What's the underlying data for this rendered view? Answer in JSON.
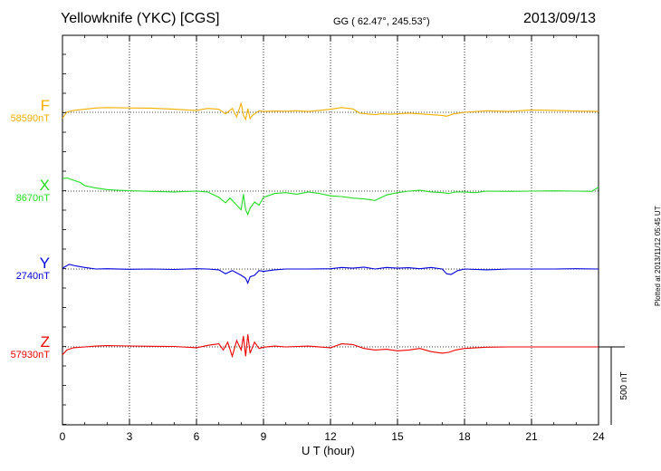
{
  "header": {
    "station": "Yellowknife (YKC)  [CGS]",
    "coords": "GG ( 62.47°, 245.53°)",
    "date": "2013/09/13"
  },
  "footer": {
    "xlabel": "U T (hour)",
    "plotted": "Plotted at 2013/11/12 05:45 UT"
  },
  "scale_bar": {
    "label": "500 nT"
  },
  "colors": {
    "F": "#f5b000",
    "X": "#22dd22",
    "Y": "#0000dd",
    "Z": "#ee0000"
  },
  "chart_data": {
    "type": "line",
    "title": "Yellowknife (YKC)  [CGS]",
    "xlabel": "U T (hour)",
    "ylabel": "",
    "xlim": [
      0,
      24
    ],
    "x_ticks": [
      0,
      3,
      6,
      9,
      12,
      15,
      18,
      21,
      24
    ],
    "x_tick_labels": [
      "0",
      "3",
      "6",
      "9",
      "12",
      "15",
      "18",
      "21",
      "24"
    ],
    "grid": true,
    "scale_nT": 500,
    "series": [
      {
        "name": "F",
        "baseline_label": "58590nT",
        "x": [
          0,
          0.2,
          0.5,
          1,
          1.5,
          2,
          3,
          4,
          5,
          6,
          6.5,
          7,
          7.3,
          7.6,
          7.8,
          8,
          8.1,
          8.2,
          8.3,
          8.4,
          8.5,
          8.8,
          9,
          9.5,
          10,
          10.5,
          11,
          11.5,
          12,
          12.5,
          13,
          13.3,
          13.6,
          14,
          14.3,
          14.6,
          15,
          15.5,
          16,
          16.5,
          17,
          17.2,
          17.5,
          18,
          19,
          20,
          21,
          22,
          23,
          24
        ],
        "y": [
          -38,
          2,
          12,
          20,
          28,
          30,
          28,
          27,
          20,
          12,
          25,
          20,
          -10,
          25,
          -30,
          60,
          -20,
          -45,
          25,
          -40,
          -20,
          10,
          5,
          8,
          7,
          10,
          5,
          12,
          20,
          30,
          22,
          -5,
          -10,
          -15,
          -8,
          -12,
          -10,
          -5,
          -10,
          -15,
          -20,
          -25,
          -10,
          0,
          10,
          5,
          15,
          12,
          8,
          5
        ]
      },
      {
        "name": "X",
        "baseline_label": "8670nT",
        "x": [
          0,
          0.2,
          0.5,
          0.8,
          1,
          1.5,
          2,
          2.5,
          3,
          4,
          5,
          6,
          6.5,
          7,
          7.3,
          7.5,
          7.8,
          8,
          8.1,
          8.2,
          8.3,
          8.4,
          8.6,
          8.8,
          9,
          9.2,
          9.5,
          10,
          10.5,
          11,
          11.5,
          12,
          12.5,
          13,
          13.5,
          14,
          14.5,
          15,
          15.5,
          16,
          16.5,
          17,
          17.3,
          17.6,
          18,
          18.5,
          19,
          20,
          21,
          22,
          23,
          23.7,
          24
        ],
        "y": [
          80,
          85,
          70,
          55,
          35,
          20,
          10,
          5,
          3,
          -2,
          -5,
          0,
          -5,
          -40,
          -75,
          -45,
          -90,
          -120,
          -20,
          -120,
          -150,
          -110,
          -70,
          -90,
          -40,
          -30,
          -15,
          -10,
          -20,
          -5,
          -15,
          -30,
          -35,
          -45,
          -50,
          -60,
          -25,
          -10,
          0,
          5,
          -5,
          -10,
          -15,
          -5,
          -5,
          -10,
          0,
          -2,
          0,
          2,
          0,
          -2,
          25
        ]
      },
      {
        "name": "Y",
        "baseline_label": "2740nT",
        "x": [
          0,
          0.3,
          0.6,
          1,
          1.5,
          2,
          3,
          4,
          5,
          6,
          6.5,
          7,
          7.3,
          7.6,
          8,
          8.2,
          8.3,
          8.4,
          8.6,
          8.8,
          9,
          9.5,
          10,
          11,
          12,
          12.5,
          13,
          13.5,
          14,
          14.5,
          15,
          15.5,
          16,
          16.5,
          17,
          17.2,
          17.4,
          17.7,
          18,
          19,
          20,
          21,
          22,
          23,
          24
        ],
        "y": [
          5,
          30,
          20,
          10,
          0,
          2,
          -2,
          0,
          -3,
          2,
          0,
          -5,
          -30,
          -10,
          -40,
          -60,
          -90,
          -50,
          -40,
          -10,
          -15,
          -5,
          0,
          0,
          2,
          10,
          5,
          12,
          0,
          10,
          5,
          8,
          2,
          10,
          0,
          -30,
          -35,
          -10,
          0,
          -5,
          0,
          0,
          0,
          2,
          0
        ]
      },
      {
        "name": "Z",
        "baseline_label": "57930nT",
        "x": [
          0,
          0.2,
          0.5,
          1,
          1.5,
          2,
          3,
          4,
          5,
          6,
          6.5,
          7,
          7.2,
          7.4,
          7.6,
          7.8,
          8,
          8.1,
          8.2,
          8.3,
          8.4,
          8.6,
          8.8,
          9,
          9.5,
          10,
          11,
          12,
          12.5,
          13,
          13.5,
          14,
          14.5,
          15,
          15.5,
          16,
          16.5,
          17,
          17.3,
          17.6,
          18,
          19,
          20,
          21,
          22,
          23,
          24
        ],
        "y": [
          -50,
          -20,
          -5,
          0,
          5,
          8,
          6,
          4,
          3,
          -5,
          10,
          20,
          -20,
          30,
          -60,
          40,
          -20,
          70,
          -60,
          80,
          -40,
          30,
          -10,
          -2,
          5,
          0,
          5,
          -5,
          20,
          15,
          -10,
          -20,
          -15,
          -25,
          -20,
          -10,
          -30,
          -40,
          -35,
          -20,
          -10,
          -2,
          0,
          0,
          0,
          0,
          0
        ]
      }
    ]
  }
}
